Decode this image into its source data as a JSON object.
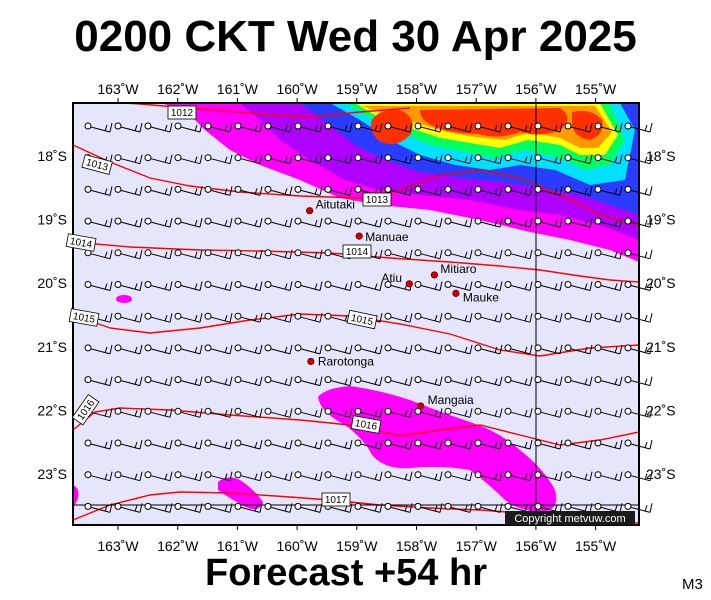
{
  "title": "0200 CKT Wed 30 Apr 2025",
  "forecast_label": "Forecast +54 hr",
  "model_code": "M3",
  "copyright": "Copyright metvuw.com",
  "axes": {
    "longitude_ticks": [
      "163˚W",
      "162˚W",
      "161˚W",
      "160˚W",
      "159˚W",
      "158˚W",
      "157˚W",
      "156˚W",
      "155˚W"
    ],
    "latitude_ticks": [
      "18˚S",
      "19˚S",
      "20˚S",
      "21˚S",
      "22˚S",
      "23˚S"
    ]
  },
  "places": [
    {
      "name": "Aitutaki",
      "lon": -159.79,
      "lat": -18.86
    },
    {
      "name": "Manuae",
      "lon": -158.96,
      "lat": -19.26
    },
    {
      "name": "Mitiaro",
      "lon": -157.7,
      "lat": -19.87
    },
    {
      "name": "Atiu",
      "lon": -158.12,
      "lat": -20.01
    },
    {
      "name": "Mauke",
      "lon": -157.34,
      "lat": -20.16
    },
    {
      "name": "Rarotonga",
      "lon": -159.77,
      "lat": -21.23
    },
    {
      "name": "Mangaia",
      "lon": -157.93,
      "lat": -21.93
    }
  ],
  "isobar_labels": [
    "1012",
    "1013",
    "1013",
    "1014",
    "1014",
    "1015",
    "1015",
    "1016",
    "1016",
    "1017"
  ],
  "colors": {
    "sea": "#e6e6fa",
    "rain_light": "#ff00ff",
    "isobar": "#ff0000",
    "place_marker": "#d40000"
  }
}
